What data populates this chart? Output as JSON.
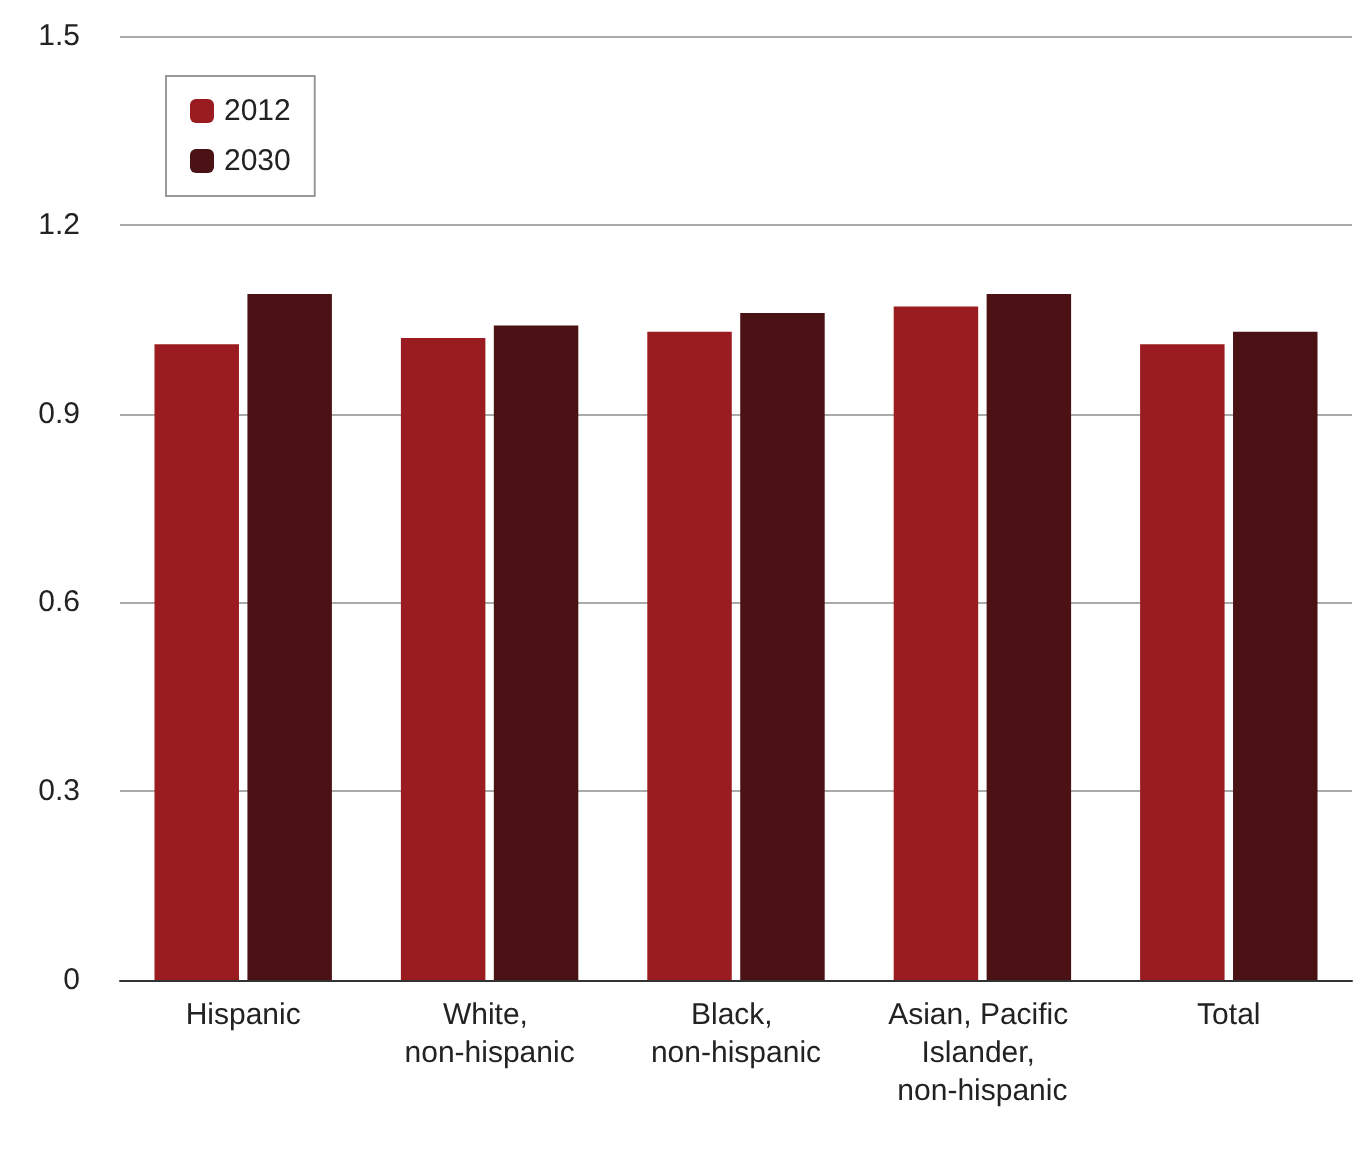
{
  "chart_data": {
    "type": "bar",
    "categories": [
      "Hispanic",
      "White, non-hispanic",
      "Black, non-hispanic",
      "Asian, Pacific Islander, non-hispanic",
      "Total"
    ],
    "series": [
      {
        "name": "2012",
        "color": "#9b1c20",
        "values": [
          1.01,
          1.02,
          1.03,
          1.07,
          1.01
        ]
      },
      {
        "name": "2030",
        "color": "#4a1214",
        "values": [
          1.09,
          1.04,
          1.06,
          1.09,
          1.03
        ]
      }
    ],
    "ylim": [
      0,
      1.5
    ],
    "yticks": [
      0,
      0.3,
      0.6,
      0.9,
      1.2,
      1.5
    ],
    "grid": "y",
    "legend": "top left"
  }
}
